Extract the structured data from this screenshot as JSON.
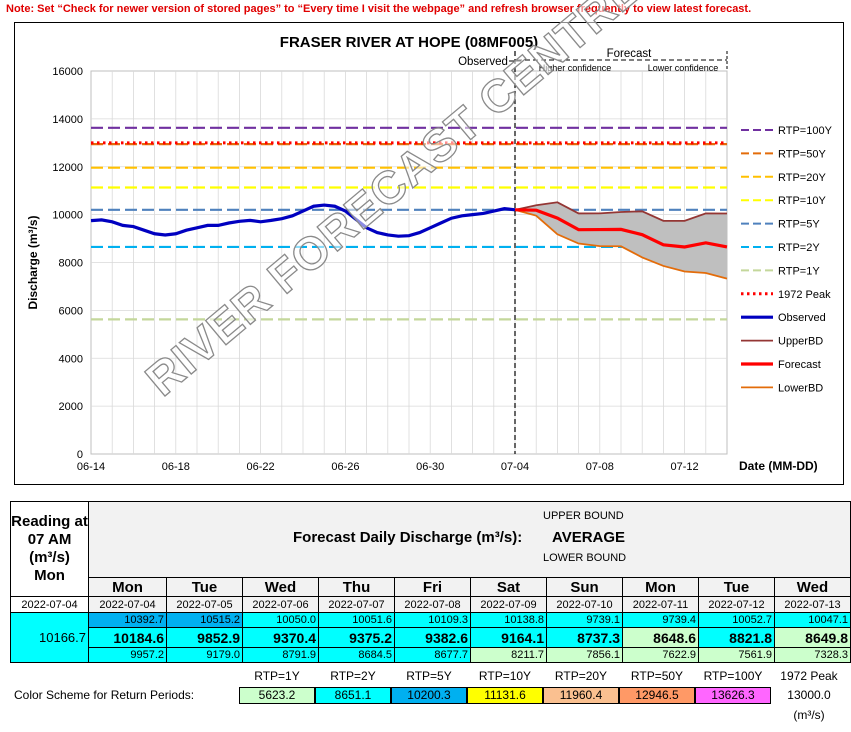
{
  "note": "Note: Set “Check for newer version of stored pages” to “Every time I visit the webpage” and refresh browser frequently to view latest forecast.",
  "watermark": "RIVER FORECAST CENTRE",
  "chart_data": {
    "type": "line",
    "title": "FRASER RIVER AT HOPE (08MF005)",
    "ylabel": "Discharge (m³/s)",
    "xlabel": "Date (MM-DD)",
    "ylim": [
      0,
      16000
    ],
    "yticks": [
      "0",
      "2000",
      "4000",
      "6000",
      "8000",
      "10000",
      "12000",
      "14000",
      "16000"
    ],
    "xticks": [
      "06-14",
      "06-18",
      "06-22",
      "06-26",
      "06-30",
      "07-04",
      "07-08",
      "07-12"
    ],
    "xlim_days": [
      0,
      30
    ],
    "forecast_start_day": 20,
    "annotations": {
      "observed": "Observed",
      "forecast": "Forecast",
      "higher": "Higher confidence",
      "lower": "Lower confidence"
    },
    "thresholds": [
      {
        "name": "RTP=100Y",
        "value": 13626.3,
        "color": "#7030a0"
      },
      {
        "name": "RTP=50Y",
        "value": 12946.5,
        "color": "#e36c0a"
      },
      {
        "name": "RTP=20Y",
        "value": 11960.4,
        "color": "#ffc000"
      },
      {
        "name": "RTP=10Y",
        "value": 11131.6,
        "color": "#ffff00"
      },
      {
        "name": "RTP=5Y",
        "value": 10200.3,
        "color": "#4f81bd"
      },
      {
        "name": "RTP=2Y",
        "value": 8651.1,
        "color": "#00b0f0"
      },
      {
        "name": "RTP=1Y",
        "value": 5623.2,
        "color": "#c4d79b"
      }
    ],
    "peak1972": {
      "name": "1972 Peak",
      "value": 13000,
      "color": "#ff0000"
    },
    "observed": {
      "name": "Observed",
      "color": "#0000c0",
      "x": [
        0,
        0.5,
        1,
        1.5,
        2,
        2.5,
        3,
        3.5,
        4,
        4.5,
        5,
        5.5,
        6,
        6.5,
        7,
        7.5,
        8,
        8.5,
        9,
        9.5,
        10,
        10.5,
        11,
        11.5,
        12,
        12.5,
        13,
        13.5,
        14,
        14.5,
        15,
        15.5,
        16,
        16.5,
        17,
        17.5,
        18,
        18.5,
        19,
        19.5,
        20
      ],
      "y": [
        9750,
        9780,
        9700,
        9550,
        9500,
        9350,
        9200,
        9150,
        9200,
        9350,
        9450,
        9550,
        9550,
        9650,
        9720,
        9760,
        9700,
        9760,
        9830,
        9950,
        10150,
        10350,
        10400,
        10350,
        10150,
        9800,
        9450,
        9250,
        9150,
        9100,
        9120,
        9250,
        9450,
        9650,
        9850,
        9950,
        10000,
        10050,
        10150,
        10250,
        10200
      ]
    },
    "upper_bound": {
      "name": "UpperBD",
      "color": "#943634",
      "x": [
        20,
        21,
        22,
        23,
        24,
        25,
        26,
        27,
        28,
        29,
        30
      ],
      "y": [
        10200,
        10392.7,
        10515.2,
        10050.0,
        10051.6,
        10109.3,
        10138.8,
        9739.1,
        9739.4,
        10052.7,
        10047.1
      ]
    },
    "forecast": {
      "name": "Forecast",
      "color": "#ff0000",
      "x": [
        20,
        21,
        22,
        23,
        24,
        25,
        26,
        27,
        28,
        29,
        30
      ],
      "y": [
        10200,
        10184.6,
        9852.9,
        9370.4,
        9375.2,
        9382.6,
        9164.1,
        8737.3,
        8648.6,
        8821.8,
        8649.8
      ]
    },
    "lower_bound": {
      "name": "LowerBD",
      "color": "#e36c0a",
      "x": [
        20,
        21,
        22,
        23,
        24,
        25,
        26,
        27,
        28,
        29,
        30
      ],
      "y": [
        10200,
        9957.2,
        9179.0,
        8791.9,
        8684.5,
        8677.7,
        8211.7,
        7856.1,
        7622.9,
        7561.9,
        7328.3
      ]
    }
  },
  "table": {
    "reading_label": "Reading at 07 AM (m³/s)",
    "reading_day": "Mon",
    "reading_date": "2022-07-04",
    "reading_value": "10166.7",
    "center_title": "Forecast Daily Discharge (m³/s):",
    "upper_label": "UPPER BOUND",
    "avg_label": "AVERAGE",
    "lower_label": "LOWER BOUND",
    "days": [
      {
        "day": "Mon",
        "date": "2022-07-04",
        "upper": "10392.7",
        "avg": "10184.6",
        "lower": "9957.2"
      },
      {
        "day": "Tue",
        "date": "2022-07-05",
        "upper": "10515.2",
        "avg": "9852.9",
        "lower": "9179.0"
      },
      {
        "day": "Wed",
        "date": "2022-07-06",
        "upper": "10050.0",
        "avg": "9370.4",
        "lower": "8791.9"
      },
      {
        "day": "Thu",
        "date": "2022-07-07",
        "upper": "10051.6",
        "avg": "9375.2",
        "lower": "8684.5"
      },
      {
        "day": "Fri",
        "date": "2022-07-08",
        "upper": "10109.3",
        "avg": "9382.6",
        "lower": "8677.7"
      },
      {
        "day": "Sat",
        "date": "2022-07-09",
        "upper": "10138.8",
        "avg": "9164.1",
        "lower": "8211.7"
      },
      {
        "day": "Sun",
        "date": "2022-07-10",
        "upper": "9739.1",
        "avg": "8737.3",
        "lower": "7856.1"
      },
      {
        "day": "Mon",
        "date": "2022-07-11",
        "upper": "9739.4",
        "avg": "8648.6",
        "lower": "7622.9"
      },
      {
        "day": "Tue",
        "date": "2022-07-12",
        "upper": "10052.7",
        "avg": "8821.8",
        "lower": "7561.9"
      },
      {
        "day": "Wed",
        "date": "2022-07-13",
        "upper": "10047.1",
        "avg": "8649.8",
        "lower": "7328.3"
      }
    ]
  },
  "scheme": {
    "label": "Color Scheme for Return Periods:",
    "periods": [
      {
        "name": "RTP=1Y",
        "value": "5623.2",
        "color": "#ccffcc"
      },
      {
        "name": "RTP=2Y",
        "value": "8651.1",
        "color": "#00ffff"
      },
      {
        "name": "RTP=5Y",
        "value": "10200.3",
        "color": "#00b0f0"
      },
      {
        "name": "RTP=10Y",
        "value": "11131.6",
        "color": "#ffff00"
      },
      {
        "name": "RTP=20Y",
        "value": "11960.4",
        "color": "#fac090"
      },
      {
        "name": "RTP=50Y",
        "value": "12946.5",
        "color": "#ff9966"
      },
      {
        "name": "RTP=100Y",
        "value": "13626.3",
        "color": "#ff66ff"
      }
    ],
    "peak_name": "1972 Peak",
    "peak_value": "13000.0",
    "unit": "(m³/s)"
  }
}
